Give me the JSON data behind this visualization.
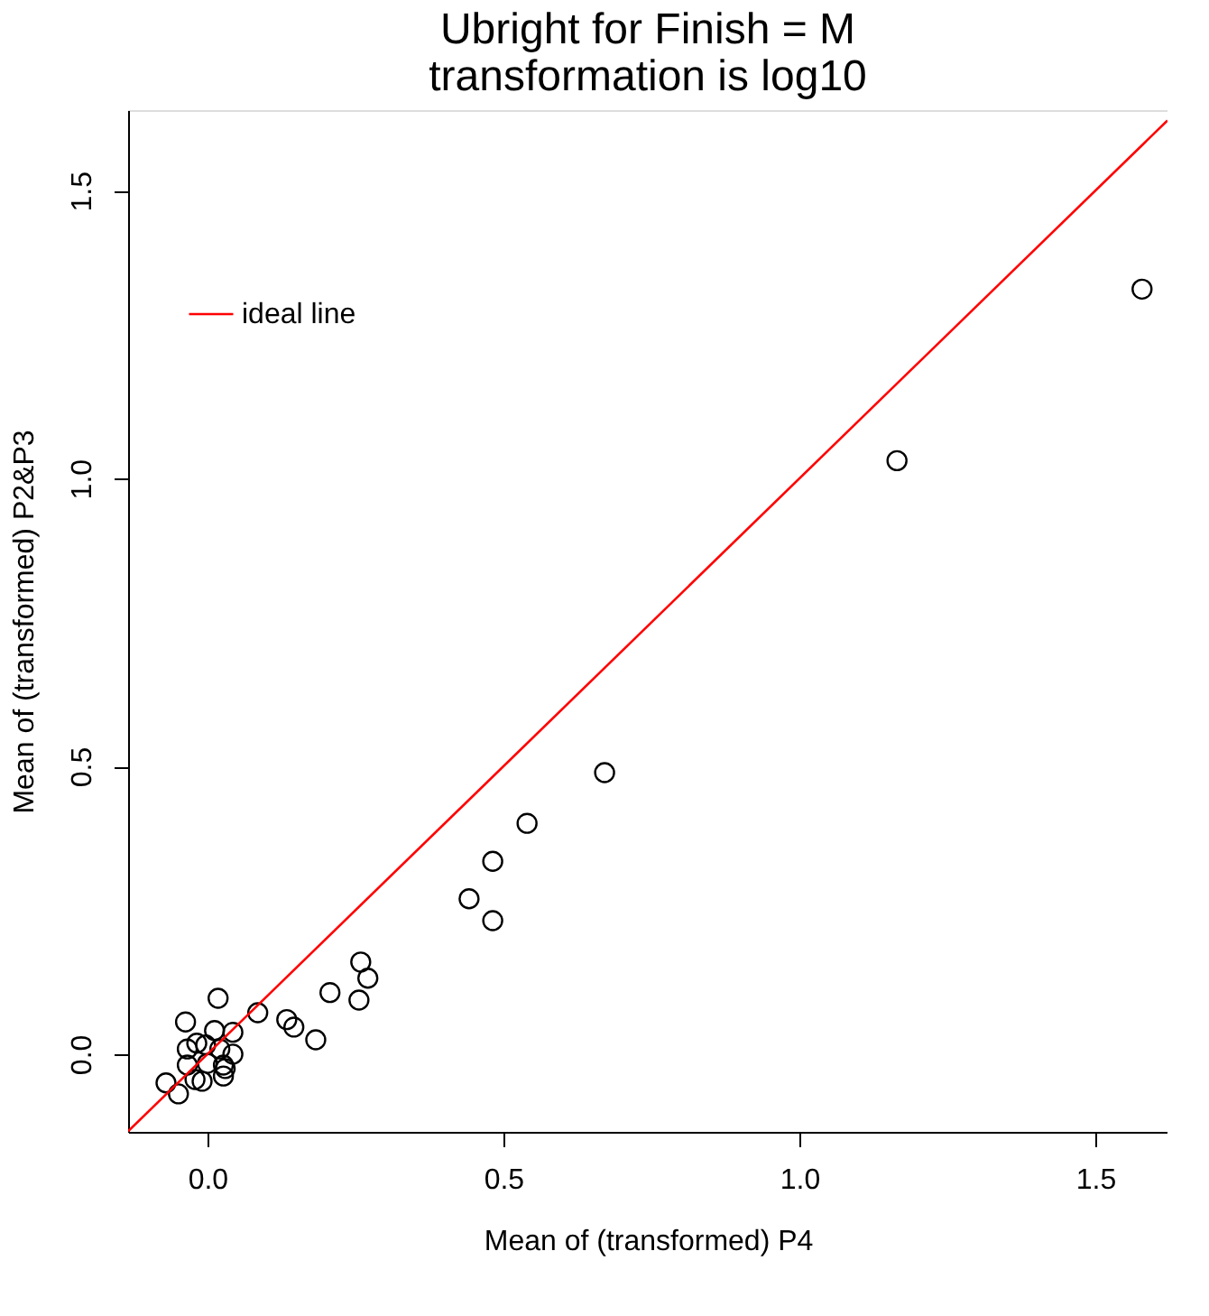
{
  "chart_data": {
    "type": "scatter",
    "title": [
      "Ubright for Finish = M",
      "transformation is log10"
    ],
    "xlabel": "Mean of (transformed) P4",
    "ylabel": "Mean of (transformed) P2&P3",
    "xlim": [
      -0.134,
      1.622
    ],
    "ylim": [
      -0.135,
      1.64
    ],
    "xticks": [
      {
        "value": 0,
        "label": "0.0"
      },
      {
        "value": 0.5,
        "label": "0.5"
      },
      {
        "value": 1,
        "label": "1.0"
      },
      {
        "value": 1.5,
        "label": "1.5"
      }
    ],
    "yticks": [
      {
        "value": 0,
        "label": "0.0"
      },
      {
        "value": 0.5,
        "label": "0.5"
      },
      {
        "value": 1,
        "label": "1.0"
      },
      {
        "value": 1.5,
        "label": "1.5"
      }
    ],
    "grid": false,
    "legend": "top left",
    "series": [
      {
        "marker": "circle",
        "color": "#000000",
        "x": [
          1.579,
          1.165,
          0.671,
          0.54,
          0.482,
          0.442,
          0.482,
          0.259,
          0.271,
          0.256,
          0.207,
          0.085,
          0.134,
          0.146,
          0.183,
          0.018,
          -0.037,
          0.012,
          0.043,
          -0.018,
          -0.003,
          -0.034,
          0.021,
          0.043,
          -0.034,
          0.0,
          0.027,
          0.03,
          0.027,
          -0.021,
          -0.009,
          -0.07,
          -0.049
        ],
        "values": [
          1.329,
          1.031,
          0.489,
          0.401,
          0.335,
          0.27,
          0.232,
          0.16,
          0.132,
          0.094,
          0.107,
          0.072,
          0.06,
          0.047,
          0.025,
          0.097,
          0.056,
          0.041,
          0.038,
          0.019,
          0.016,
          0.009,
          0.009,
          0.0,
          -0.019,
          -0.016,
          -0.019,
          -0.025,
          -0.038,
          -0.044,
          -0.047,
          -0.05,
          -0.069
        ]
      },
      {
        "type": "line",
        "name": "ideal line",
        "color": "#ff0000",
        "line_style": "solid",
        "x": [
          -0.134,
          1.622
        ],
        "values": [
          -0.134,
          1.622
        ]
      }
    ]
  }
}
